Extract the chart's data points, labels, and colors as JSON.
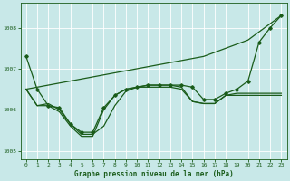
{
  "title": "Graphe pression niveau de la mer (hPa)",
  "bg_color": "#c8e8e8",
  "grid_color": "#ffffff",
  "line_color": "#1a5c1a",
  "xlim": [
    -0.5,
    23.5
  ],
  "ylim": [
    1004.8,
    1008.6
  ],
  "yticks": [
    1005,
    1006,
    1007,
    1008
  ],
  "xticks": [
    0,
    1,
    2,
    3,
    4,
    5,
    6,
    7,
    8,
    9,
    10,
    11,
    12,
    13,
    14,
    15,
    16,
    17,
    18,
    19,
    20,
    21,
    22,
    23
  ],
  "series": [
    {
      "x": [
        0,
        1,
        2,
        3,
        4,
        5,
        6,
        7,
        8,
        9,
        10,
        11,
        12,
        13,
        14,
        15,
        16,
        17,
        18,
        19,
        20,
        21,
        22,
        23
      ],
      "y": [
        1006.5,
        1006.55,
        1006.6,
        1006.65,
        1006.7,
        1006.75,
        1006.8,
        1006.85,
        1006.9,
        1006.95,
        1007.0,
        1007.05,
        1007.1,
        1007.15,
        1007.2,
        1007.25,
        1007.3,
        1007.4,
        1007.5,
        1007.6,
        1007.7,
        1007.9,
        1008.1,
        1008.3
      ],
      "marker": false,
      "lw": 0.9
    },
    {
      "x": [
        0,
        1,
        2,
        3,
        4,
        5,
        6,
        7,
        8,
        9,
        10,
        11,
        12,
        13,
        14,
        15,
        16,
        17,
        18,
        19,
        20,
        21,
        22,
        23
      ],
      "y": [
        1007.3,
        1006.5,
        1006.1,
        1006.05,
        1005.65,
        1005.45,
        1005.45,
        1006.05,
        1006.35,
        1006.5,
        1006.55,
        1006.6,
        1006.6,
        1006.6,
        1006.6,
        1006.55,
        1006.25,
        1006.25,
        1006.4,
        1006.5,
        1006.7,
        1007.65,
        1008.0,
        1008.3
      ],
      "marker": true,
      "lw": 0.9
    },
    {
      "x": [
        0,
        1,
        2,
        3,
        4,
        5,
        6,
        7,
        8,
        9,
        10,
        11,
        12,
        13,
        14,
        15,
        16,
        17,
        18,
        19,
        20,
        21,
        22,
        23
      ],
      "y": [
        1006.5,
        1006.1,
        1006.1,
        1005.95,
        1005.6,
        1005.35,
        1005.35,
        1006.0,
        1006.35,
        1006.5,
        1006.55,
        1006.55,
        1006.55,
        1006.55,
        1006.5,
        1006.2,
        1006.15,
        1006.15,
        1006.35,
        1006.4,
        1006.4,
        1006.4,
        1006.4,
        1006.4
      ],
      "marker": false,
      "lw": 0.9
    },
    {
      "x": [
        0,
        1,
        2,
        3,
        4,
        5,
        6,
        7,
        8,
        9,
        10,
        11,
        12,
        13,
        14,
        15,
        16,
        17,
        18,
        19,
        20,
        21,
        22,
        23
      ],
      "y": [
        1006.5,
        1006.1,
        1006.15,
        1006.0,
        1005.65,
        1005.4,
        1005.4,
        1005.6,
        1006.1,
        1006.45,
        1006.55,
        1006.6,
        1006.6,
        1006.6,
        1006.55,
        1006.2,
        1006.15,
        1006.15,
        1006.35,
        1006.35,
        1006.35,
        1006.35,
        1006.35,
        1006.35
      ],
      "marker": false,
      "lw": 0.9
    }
  ]
}
